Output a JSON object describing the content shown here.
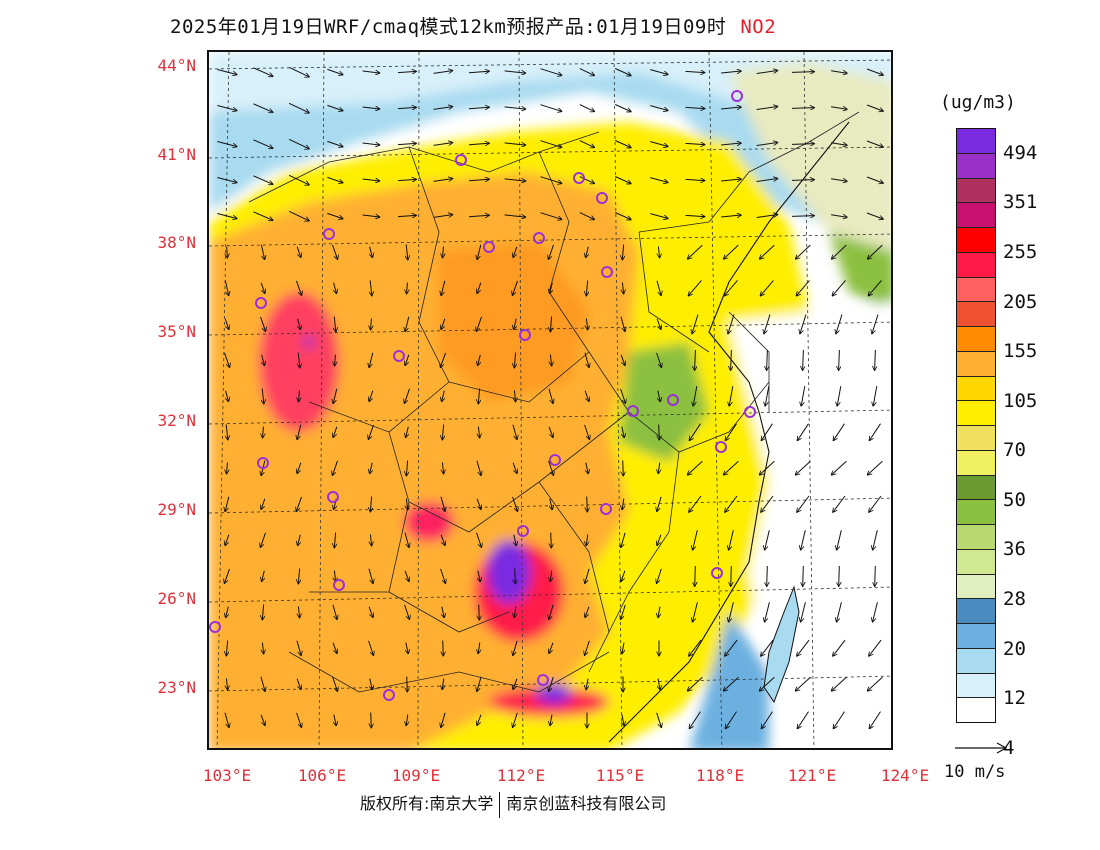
{
  "title": {
    "main": "2025年01月19日WRF/cmaq模式12km预报产品:01月19日09时",
    "species": "NO2"
  },
  "axes": {
    "lat_labels": [
      "44°N",
      "41°N",
      "38°N",
      "35°N",
      "32°N",
      "29°N",
      "26°N",
      "23°N"
    ],
    "lon_labels": [
      "103°E",
      "106°E",
      "109°E",
      "112°E",
      "115°E",
      "118°E",
      "121°E",
      "124°E"
    ]
  },
  "legend": {
    "units": "(ug/m3)",
    "levels": [
      "494",
      "351",
      "255",
      "205",
      "155",
      "105",
      "70",
      "50",
      "36",
      "28",
      "20",
      "12",
      "4"
    ],
    "colors": [
      "#7a2be0",
      "#9a30c8",
      "#b03060",
      "#c8106e",
      "#ff0000",
      "#ff1a4a",
      "#ff6060",
      "#ee5030",
      "#ff8c00",
      "#ffb030",
      "#ffd700",
      "#ffee00",
      "#f0e060",
      "#f0f060",
      "#6a9a30",
      "#8cc040",
      "#b8d870",
      "#d0e890",
      "#e0eec0",
      "#4a8cc0",
      "#6cb0e0",
      "#a8daf0",
      "#d8f0fa",
      "#ffffff"
    ]
  },
  "vector_key": {
    "label": "10 m/s"
  },
  "copyright": {
    "left": "版权所有:南京大学",
    "right": "南京创蓝科技有限公司"
  },
  "map": {
    "stations": "purple-circle",
    "colors": {
      "background": "#ffffff",
      "frame": "#111111"
    }
  }
}
